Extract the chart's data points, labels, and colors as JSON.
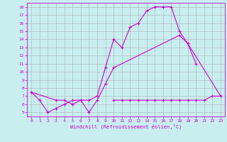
{
  "xlabel": "Windchill (Refroidissement éolien,°C)",
  "bg_color": "#c8eef0",
  "grid_color": "#b0b0b0",
  "line_color": "#cc00cc",
  "xlim": [
    -0.5,
    23.5
  ],
  "ylim": [
    4.5,
    18.5
  ],
  "yticks": [
    5,
    6,
    7,
    8,
    9,
    10,
    11,
    12,
    13,
    14,
    15,
    16,
    17,
    18
  ],
  "xticks": [
    0,
    1,
    2,
    3,
    4,
    5,
    6,
    7,
    8,
    9,
    10,
    11,
    12,
    13,
    14,
    15,
    16,
    17,
    18,
    19,
    20,
    21,
    22,
    23
  ],
  "line1_x": [
    0,
    1,
    2,
    3,
    4,
    5,
    6,
    7,
    8,
    9,
    10,
    11,
    12,
    13,
    14,
    15,
    16,
    17,
    18,
    19,
    20
  ],
  "line1_y": [
    7.5,
    6.5,
    5.0,
    5.5,
    6.0,
    6.5,
    6.5,
    6.5,
    7.0,
    10.5,
    14.0,
    13.0,
    15.5,
    16.0,
    17.5,
    18.0,
    18.0,
    18.0,
    15.0,
    13.5,
    11.0
  ],
  "line2_x": [
    0,
    3,
    4,
    5,
    6,
    7,
    8,
    9,
    10,
    18,
    19,
    23
  ],
  "line2_y": [
    7.5,
    6.5,
    6.5,
    6.0,
    6.5,
    5.0,
    6.5,
    8.5,
    10.5,
    14.5,
    13.5,
    7.0
  ],
  "line3_x": [
    10,
    11,
    12,
    13,
    14,
    15,
    16,
    17,
    18,
    19,
    20,
    21,
    22,
    23
  ],
  "line3_y": [
    6.5,
    6.5,
    6.5,
    6.5,
    6.5,
    6.5,
    6.5,
    6.5,
    6.5,
    6.5,
    6.5,
    6.5,
    7.0,
    7.0
  ]
}
